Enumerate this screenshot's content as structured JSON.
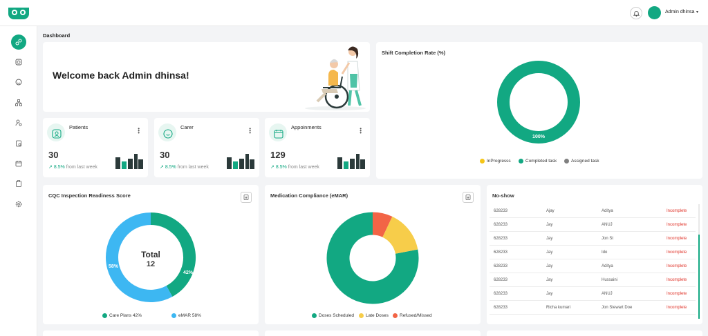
{
  "header": {
    "username": "Admin dhinsa",
    "bell_icon": "bell-icon",
    "brand_color": "#12a882"
  },
  "sidebar": {
    "items": [
      {
        "name": "dashboard",
        "icon": "dashboard-icon",
        "active": true
      },
      {
        "name": "clock",
        "icon": "clock-icon"
      },
      {
        "name": "face",
        "icon": "face-icon"
      },
      {
        "name": "hierarchy",
        "icon": "hierarchy-icon"
      },
      {
        "name": "user-settings",
        "icon": "user-settings-icon"
      },
      {
        "name": "document",
        "icon": "document-icon"
      },
      {
        "name": "calendar",
        "icon": "calendar-icon"
      },
      {
        "name": "clipboard",
        "icon": "clipboard-icon"
      },
      {
        "name": "settings",
        "icon": "settings-icon"
      }
    ]
  },
  "breadcrumb": "Dashboard",
  "welcome": {
    "text": "Welcome back Admin dhinsa!"
  },
  "stats": [
    {
      "title": "Patients",
      "value": "30",
      "change": "8.5%",
      "change_note": "from last week"
    },
    {
      "title": "Carer",
      "value": "30",
      "change": "8.5%",
      "change_note": "from last week"
    },
    {
      "title": "Appoinments",
      "value": "129",
      "change": "8.5%",
      "change_note": "from last week"
    }
  ],
  "shift": {
    "title": "Shift Completion Rate (%)",
    "center_label": "100%",
    "legend": [
      {
        "label": "InProgresss",
        "color": "#f5c518"
      },
      {
        "label": "Completed task",
        "color": "#12a882"
      },
      {
        "label": "Assigned task",
        "color": "#808080"
      }
    ]
  },
  "cqc": {
    "title": "CQC Inspection Readiness Score",
    "total_label": "Total",
    "total_value": "12",
    "legend": [
      {
        "label": "Care Plans 42%",
        "color": "#12a882"
      },
      {
        "label": "eMAR 58%",
        "color": "#3db7f2"
      }
    ]
  },
  "medication": {
    "title": "Medication Compliance (eMAR)",
    "legend": [
      {
        "label": "Doses Scheduled",
        "color": "#12a882"
      },
      {
        "label": "Late Doses",
        "color": "#f7cd4a"
      },
      {
        "label": "Refused/Missed",
        "color": "#f26446"
      }
    ]
  },
  "noshow": {
    "title": "No-show",
    "rows": [
      {
        "id": "628233",
        "carer": "Ajay",
        "patient": "Aditya",
        "status": "Incomplete"
      },
      {
        "id": "628233",
        "carer": "Jay",
        "patient": "ANUJ",
        "status": "Incomplete"
      },
      {
        "id": "628233",
        "carer": "Jay",
        "patient": "Jon St",
        "status": "Incomplete"
      },
      {
        "id": "628233",
        "carer": "Jay",
        "patient": "Ido",
        "status": "Incomplete"
      },
      {
        "id": "628233",
        "carer": "Jay",
        "patient": "Aditya",
        "status": "Incomplete"
      },
      {
        "id": "628233",
        "carer": "Jay",
        "patient": "Hussaini",
        "status": "Incomplete"
      },
      {
        "id": "628233",
        "carer": "Jay",
        "patient": "ANUJ",
        "status": "Incomplete"
      },
      {
        "id": "628233",
        "carer": "Richa kumari",
        "patient": "Jon Stewart Doe",
        "status": "Incomplete"
      }
    ]
  },
  "chart_data": [
    {
      "type": "pie",
      "title": "Shift Completion Rate (%)",
      "categories": [
        "InProgresss",
        "Completed task",
        "Assigned task"
      ],
      "values": [
        0,
        100,
        0
      ]
    },
    {
      "type": "pie",
      "title": "CQC Inspection Readiness Score",
      "categories": [
        "Care Plans",
        "eMAR"
      ],
      "values": [
        42,
        58
      ],
      "data_labels": [
        "42%",
        "58%"
      ]
    },
    {
      "type": "pie",
      "title": "Medication Compliance (eMAR)",
      "categories": [
        "Doses Scheduled",
        "Late Doses",
        "Refused/Missed"
      ],
      "values": [
        78,
        15,
        7
      ]
    }
  ]
}
